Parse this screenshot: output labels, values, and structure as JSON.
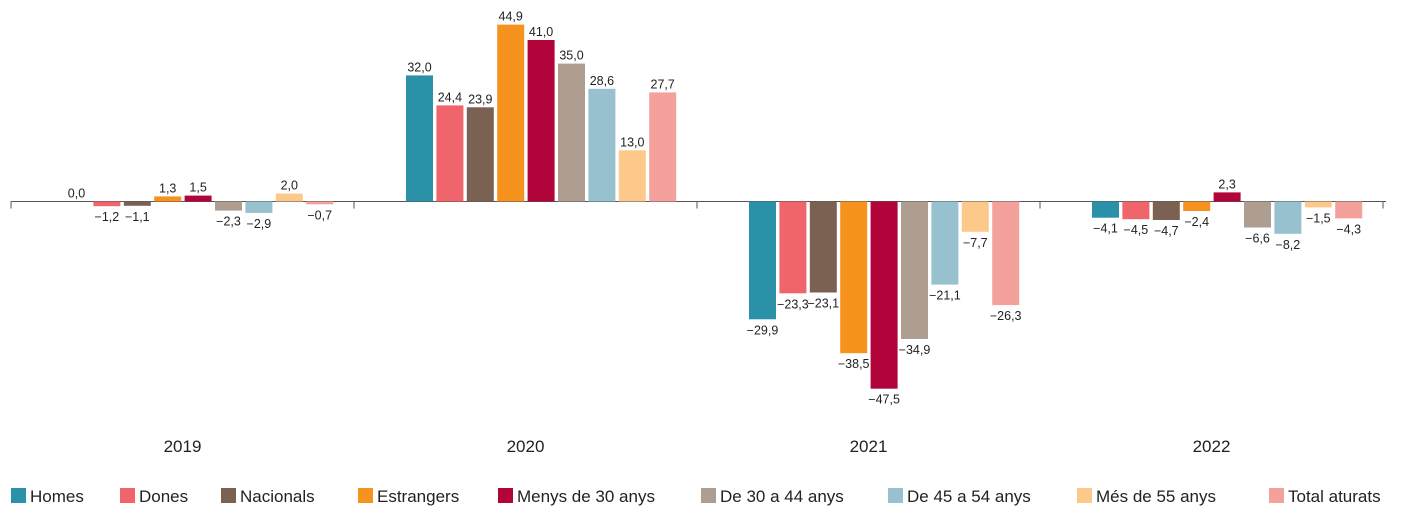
{
  "chart_data": {
    "type": "bar",
    "categories": [
      "2019",
      "2020",
      "2021",
      "2022"
    ],
    "series": [
      {
        "name": "Homes",
        "color": "#2a91a8",
        "values": [
          0.0,
          32.0,
          -29.9,
          -4.1
        ],
        "labels": [
          "0,0",
          "32,0",
          "−29,9",
          "−4,1"
        ]
      },
      {
        "name": "Dones",
        "color": "#f0646b",
        "values": [
          -1.2,
          24.4,
          -23.3,
          -4.5
        ],
        "labels": [
          "−1,2",
          "24,4",
          "−23,3",
          "−4,5"
        ]
      },
      {
        "name": "Nacionals",
        "color": "#7b6152",
        "values": [
          -1.1,
          23.9,
          -23.1,
          -4.7
        ],
        "labels": [
          "−1,1",
          "23,9",
          "−23,1",
          "−4,7"
        ]
      },
      {
        "name": "Estrangers",
        "color": "#f6921e",
        "values": [
          1.3,
          44.9,
          -38.5,
          -2.4
        ],
        "labels": [
          "1,3",
          "44,9",
          "−38,5",
          "−2,4"
        ]
      },
      {
        "name": "Menys de 30 anys",
        "color": "#b0043a",
        "values": [
          1.5,
          41.0,
          -47.5,
          2.3
        ],
        "labels": [
          "1,5",
          "41,0",
          "−47,5",
          "2,3"
        ]
      },
      {
        "name": "De 30 a 44 anys",
        "color": "#ae9e92",
        "values": [
          -2.3,
          35.0,
          -34.9,
          -6.6
        ],
        "labels": [
          "−2,3",
          "35,0",
          "−34,9",
          "−6,6"
        ]
      },
      {
        "name": "De 45 a 54 anys",
        "color": "#98c1d0",
        "values": [
          -2.9,
          28.6,
          -21.1,
          -8.2
        ],
        "labels": [
          "−2,9",
          "28,6",
          "−21,1",
          "−8,2"
        ]
      },
      {
        "name": "Més de 55 anys",
        "color": "#fdc98a",
        "values": [
          2.0,
          13.0,
          -7.7,
          -1.5
        ],
        "labels": [
          "2,0",
          "13,0",
          "−7,7",
          "−1,5"
        ]
      },
      {
        "name": "Total aturats",
        "color": "#f4a19b",
        "values": [
          -0.7,
          27.7,
          -26.3,
          -4.3
        ],
        "labels": [
          "−0,7",
          "27,7",
          "−26,3",
          "−4,3"
        ]
      }
    ],
    "axis_color": "#555555",
    "grid": false,
    "legend_position": "bottom"
  }
}
